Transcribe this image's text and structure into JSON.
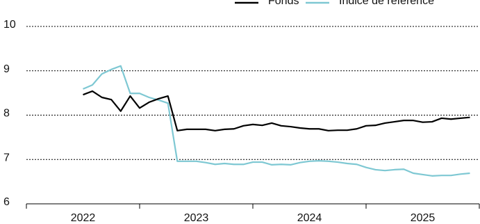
{
  "chart_data": {
    "type": "line",
    "x": [
      2022.5,
      2022.583,
      2022.667,
      2022.75,
      2022.833,
      2022.917,
      2023,
      2023.083,
      2023.167,
      2023.25,
      2023.333,
      2023.417,
      2023.5,
      2023.583,
      2023.667,
      2023.75,
      2023.833,
      2023.917,
      2024,
      2024.083,
      2024.167,
      2024.25,
      2024.333,
      2024.417,
      2024.5,
      2024.583,
      2024.667,
      2024.75,
      2024.833,
      2024.917,
      2025,
      2025.083,
      2025.167,
      2025.25,
      2025.333,
      2025.417,
      2025.5,
      2025.583,
      2025.667,
      2025.75,
      2025.833,
      2025.917
    ],
    "series": [
      {
        "name": "Fonds",
        "color": "#000000",
        "values": [
          8.46,
          8.54,
          8.4,
          8.35,
          8.09,
          8.43,
          8.16,
          8.29,
          8.37,
          8.43,
          7.65,
          7.68,
          7.68,
          7.68,
          7.65,
          7.68,
          7.69,
          7.76,
          7.79,
          7.77,
          7.82,
          7.76,
          7.74,
          7.71,
          7.69,
          7.69,
          7.65,
          7.66,
          7.66,
          7.69,
          7.76,
          7.77,
          7.82,
          7.85,
          7.88,
          7.88,
          7.84,
          7.85,
          7.93,
          7.91,
          7.93,
          7.95
        ]
      },
      {
        "name": "Indice de référence",
        "color": "#7ec8d3",
        "values": [
          8.59,
          8.68,
          8.93,
          9.03,
          9.11,
          8.49,
          8.49,
          8.4,
          8.34,
          8.27,
          6.96,
          6.96,
          6.96,
          6.93,
          6.89,
          6.91,
          6.89,
          6.89,
          6.94,
          6.94,
          6.88,
          6.89,
          6.88,
          6.93,
          6.96,
          6.97,
          6.96,
          6.94,
          6.91,
          6.89,
          6.82,
          6.77,
          6.75,
          6.77,
          6.78,
          6.69,
          6.66,
          6.63,
          6.64,
          6.64,
          6.67,
          6.69
        ]
      }
    ],
    "xlim": [
      2022,
      2026
    ],
    "xboundaries": [
      2022,
      2023,
      2024,
      2025,
      2026
    ],
    "xticks": [
      {
        "value": 2022.5,
        "label": "2022"
      },
      {
        "value": 2023.5,
        "label": "2023"
      },
      {
        "value": 2024.5,
        "label": "2024"
      },
      {
        "value": 2025.5,
        "label": "2025"
      }
    ],
    "ylim": [
      6,
      10
    ],
    "yticks": [
      6,
      7,
      8,
      9,
      10
    ],
    "grid": true
  }
}
